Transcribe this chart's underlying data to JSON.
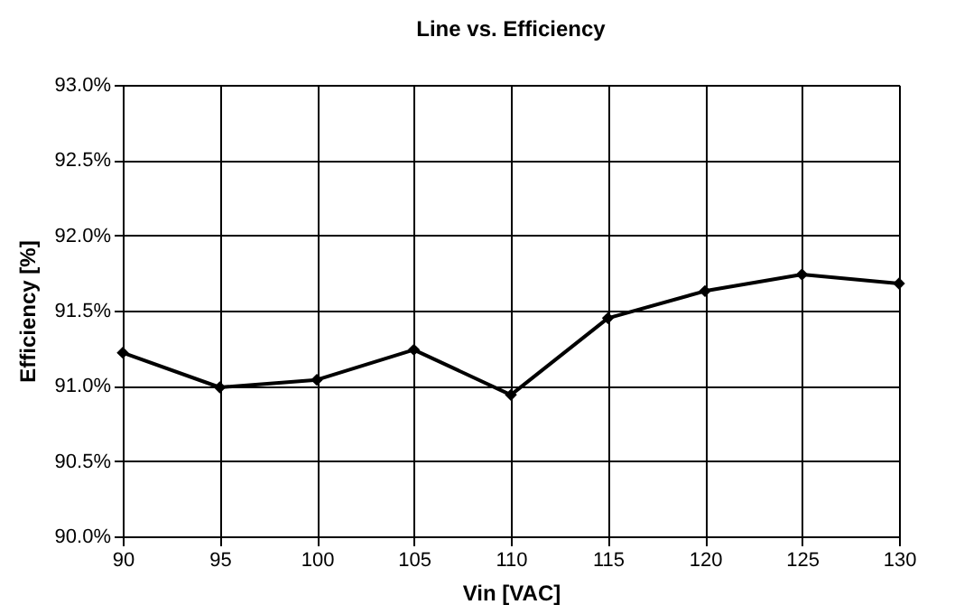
{
  "chart_data": {
    "type": "line",
    "title": "Line vs. Efficiency",
    "xlabel": "Vin [VAC]",
    "ylabel": "Efficiency [%]",
    "x": [
      90,
      95,
      100,
      105,
      110,
      115,
      120,
      125,
      130
    ],
    "series": [
      {
        "color": "#000000",
        "values": [
          91.22,
          90.99,
          91.04,
          91.24,
          90.94,
          91.45,
          91.63,
          91.74,
          91.68
        ]
      }
    ],
    "xlim": [
      90,
      130
    ],
    "xticks": [
      90,
      95,
      100,
      105,
      110,
      115,
      120,
      125,
      130
    ],
    "ylim": [
      90,
      93
    ],
    "yticks": [
      {
        "value": 90,
        "label": "90.0%"
      },
      {
        "value": 90.5,
        "label": "90.5%"
      },
      {
        "value": 91,
        "label": "91.0%"
      },
      {
        "value": 91.5,
        "label": "91.5%"
      },
      {
        "value": 92,
        "label": "92.0%"
      },
      {
        "value": 92.5,
        "label": "92.5%"
      },
      {
        "value": 93,
        "label": "93.0%"
      }
    ],
    "grid": true,
    "marker": "diamond",
    "line_style": "solid"
  }
}
